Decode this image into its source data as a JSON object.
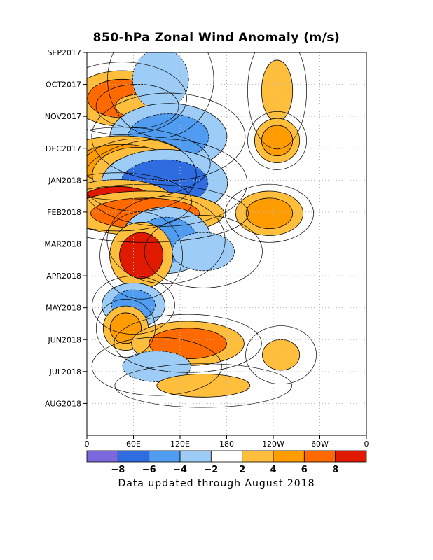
{
  "chart_data": {
    "type": "heatmap",
    "title": "850-hPa Zonal Wind Anomaly (m/s)",
    "y_ticks": [
      "SEP2017",
      "OCT2017",
      "NOV2017",
      "DEC2017",
      "JAN2018",
      "FEB2018",
      "MAR2018",
      "APR2018",
      "MAY2018",
      "JUN2018",
      "JUL2018",
      "AUG2018"
    ],
    "x_ticks": [
      "0",
      "60E",
      "120E",
      "180",
      "120W",
      "60W",
      "0"
    ],
    "colorbar": {
      "labels": [
        "−8",
        "−6",
        "−4",
        "−2",
        "2",
        "4",
        "6",
        "8"
      ],
      "colors": [
        "#7b68dd",
        "#2e6ce0",
        "#4f9cf0",
        "#9dcdf6",
        "#ffffff",
        "#ffbf3c",
        "#ff9d00",
        "#ff6a00",
        "#e01a00"
      ]
    },
    "features": [
      {
        "lon": 45,
        "t": 0.12,
        "level": 6,
        "rx": 22,
        "ry": 5
      },
      {
        "lon": 65,
        "t": 0.14,
        "level": 2,
        "rx": 14,
        "ry": 3
      },
      {
        "lon": 95,
        "t": 0.07,
        "level": -2,
        "rx": 18,
        "ry": 8
      },
      {
        "lon": 105,
        "t": 0.22,
        "level": -4,
        "rx": 26,
        "ry": 6
      },
      {
        "lon": 45,
        "t": 0.29,
        "level": 4,
        "rx": 30,
        "ry": 5
      },
      {
        "lon": 65,
        "t": 0.32,
        "level": 4,
        "rx": 20,
        "ry": 5
      },
      {
        "lon": 100,
        "t": 0.34,
        "level": -6,
        "rx": 28,
        "ry": 6
      },
      {
        "lon": 40,
        "t": 0.39,
        "level": 8,
        "rx": 25,
        "ry": 4
      },
      {
        "lon": 75,
        "t": 0.42,
        "level": 6,
        "rx": 35,
        "ry": 4
      },
      {
        "lon": 102,
        "t": 0.49,
        "level": -4,
        "rx": 20,
        "ry": 6
      },
      {
        "lon": 70,
        "t": 0.53,
        "level": 8,
        "rx": 14,
        "ry": 6
      },
      {
        "lon": 150,
        "t": 0.52,
        "level": -2,
        "rx": 20,
        "ry": 5
      },
      {
        "lon": 60,
        "t": 0.66,
        "level": -4,
        "rx": 14,
        "ry": 4
      },
      {
        "lon": 50,
        "t": 0.72,
        "level": 4,
        "rx": 10,
        "ry": 4
      },
      {
        "lon": 130,
        "t": 0.76,
        "level": 6,
        "rx": 25,
        "ry": 4
      },
      {
        "lon": 235,
        "t": 0.42,
        "level": 4,
        "rx": 15,
        "ry": 4
      },
      {
        "lon": 245,
        "t": 0.1,
        "level": 2,
        "rx": 10,
        "ry": 8
      },
      {
        "lon": 245,
        "t": 0.23,
        "level": 4,
        "rx": 10,
        "ry": 4
      },
      {
        "lon": 90,
        "t": 0.82,
        "level": -2,
        "rx": 22,
        "ry": 4
      },
      {
        "lon": 150,
        "t": 0.87,
        "level": 2,
        "rx": 30,
        "ry": 3
      },
      {
        "lon": 250,
        "t": 0.79,
        "level": 2,
        "rx": 12,
        "ry": 4
      }
    ]
  },
  "footer": "Data updated through August 2018"
}
